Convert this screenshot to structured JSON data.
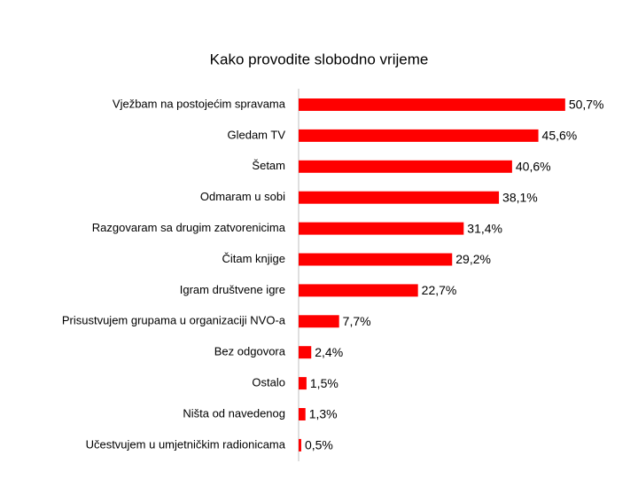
{
  "chart_data": {
    "type": "bar",
    "orientation": "horizontal",
    "title": "Kako provodite slobodno vrijeme",
    "categories": [
      "Vježbam na postojećim spravama",
      "Gledam TV",
      "Šetam",
      "Odmaram u sobi",
      "Razgovaram sa drugim zatvorenicima",
      "Čitam knjige",
      "Igram društvene igre",
      "Prisustvujem grupama u organizaciji NVO-a",
      "Bez odgovora",
      "Ostalo",
      "Ništa od navedenog",
      "Učestvujem u umjetničkim radionicama"
    ],
    "values": [
      50.7,
      45.6,
      40.6,
      38.1,
      31.4,
      29.2,
      22.7,
      7.7,
      2.4,
      1.5,
      1.3,
      0.5
    ],
    "value_labels": [
      "50,7%",
      "45,6%",
      "40,6%",
      "38,1%",
      "31,4%",
      "29,2%",
      "22,7%",
      "7,7%",
      "2,4%",
      "1,5%",
      "1,3%",
      "0,5%"
    ],
    "color": "#ff0000",
    "xlim": [
      0,
      60
    ]
  }
}
